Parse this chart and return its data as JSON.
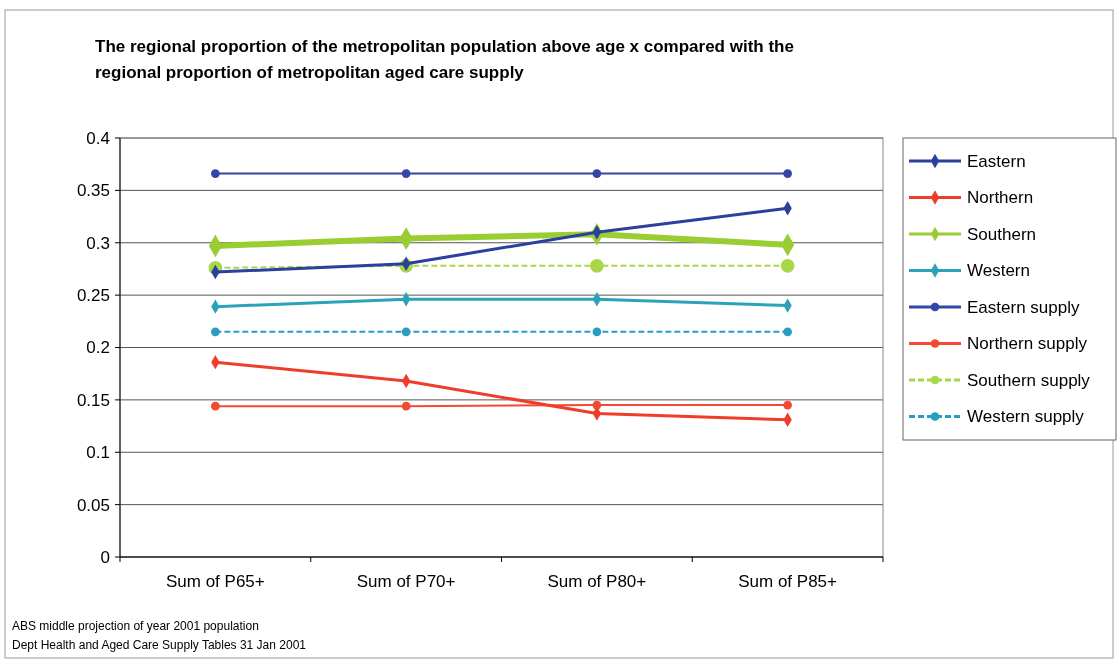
{
  "chart_data": {
    "type": "line",
    "title": "The regional proportion of the metropolitan population above age x compared with the regional proportion of metropolitan aged care supply",
    "categories": [
      "Sum of P65+",
      "Sum of P70+",
      "Sum of P80+",
      "Sum of P85+"
    ],
    "series": [
      {
        "name": "Eastern",
        "color": "#2b3f9e",
        "marker": "diamond",
        "line_style": "solid",
        "values": [
          0.272,
          0.28,
          0.31,
          0.333
        ]
      },
      {
        "name": "Northern",
        "color": "#f03c2a",
        "marker": "diamond",
        "line_style": "solid",
        "values": [
          0.186,
          0.168,
          0.137,
          0.131
        ]
      },
      {
        "name": "Southern",
        "color": "#9acd32",
        "marker": "diamond",
        "line_style": "solid",
        "values": [
          0.297,
          0.304,
          0.308,
          0.298
        ]
      },
      {
        "name": "Western",
        "color": "#2aa3b8",
        "marker": "diamond",
        "line_style": "solid",
        "values": [
          0.239,
          0.246,
          0.246,
          0.24
        ]
      },
      {
        "name": "Eastern supply",
        "color": "#3545a8",
        "marker": "circle",
        "line_style": "solid",
        "values": [
          0.366,
          0.366,
          0.366,
          0.366
        ]
      },
      {
        "name": "Northern supply",
        "color": "#f24a35",
        "marker": "circle",
        "line_style": "solid",
        "values": [
          0.144,
          0.144,
          0.145,
          0.145
        ]
      },
      {
        "name": "Southern supply",
        "color": "#a8d84a",
        "marker": "circle",
        "line_style": "dashed",
        "values": [
          0.276,
          0.278,
          0.278,
          0.278
        ]
      },
      {
        "name": "Western supply",
        "color": "#2a9cc0",
        "marker": "circle",
        "line_style": "dashed",
        "values": [
          0.215,
          0.215,
          0.215,
          0.215
        ]
      }
    ],
    "ylim": [
      0,
      0.4
    ],
    "yticks": [
      0,
      0.05,
      0.1,
      0.15,
      0.2,
      0.25,
      0.3,
      0.35,
      0.4
    ],
    "grid": "y",
    "legend": "right",
    "annotations": [
      "ABS middle projection of year 2001 population",
      "Dept Health and Aged Care Supply Tables 31 Jan 2001"
    ]
  }
}
